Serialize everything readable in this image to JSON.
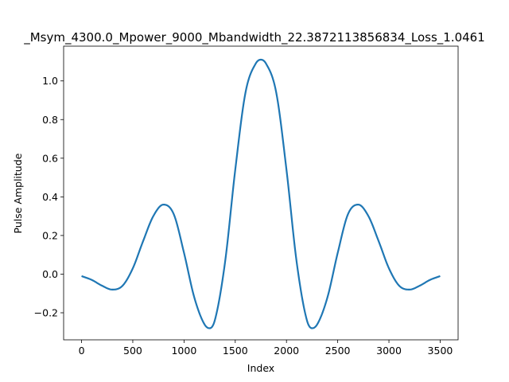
{
  "chart_data": {
    "type": "line",
    "title": "_Msym_4300.0_Mpower_9000_Mbandwidth_22.3872113856834_Loss_1.0461",
    "xlabel": "Index",
    "ylabel": "Pulse Amplitude",
    "xlim": [
      -175,
      3675
    ],
    "ylim": [
      -0.34,
      1.18
    ],
    "xticks": [
      0,
      500,
      1000,
      1500,
      2000,
      2500,
      3000,
      3500
    ],
    "xtick_labels": [
      "0",
      "500",
      "1000",
      "1500",
      "2000",
      "2500",
      "3000",
      "3500"
    ],
    "yticks": [
      -0.2,
      0.0,
      0.2,
      0.4,
      0.6,
      0.8,
      1.0
    ],
    "ytick_labels": [
      "−0.2",
      "0.0",
      "0.2",
      "0.4",
      "0.6",
      "0.8",
      "1.0"
    ],
    "grid": false,
    "line_color": "#1f77b4",
    "series": [
      {
        "x": [
          0,
          100,
          200,
          300,
          400,
          500,
          600,
          700,
          800,
          900,
          1000,
          1100,
          1200,
          1250,
          1300,
          1400,
          1500,
          1600,
          1700,
          1750,
          1800,
          1900,
          2000,
          2100,
          2200,
          2250,
          2300,
          2400,
          2500,
          2600,
          2700,
          2800,
          2900,
          3000,
          3100,
          3200,
          3300,
          3400,
          3500
        ],
        "y": [
          -0.01,
          -0.03,
          -0.06,
          -0.08,
          -0.06,
          0.03,
          0.17,
          0.3,
          0.36,
          0.31,
          0.11,
          -0.12,
          -0.26,
          -0.28,
          -0.24,
          0.06,
          0.54,
          0.94,
          1.09,
          1.11,
          1.09,
          0.94,
          0.54,
          0.06,
          -0.24,
          -0.28,
          -0.26,
          -0.12,
          0.11,
          0.31,
          0.36,
          0.3,
          0.17,
          0.03,
          -0.06,
          -0.08,
          -0.06,
          -0.03,
          -0.01
        ]
      }
    ]
  }
}
